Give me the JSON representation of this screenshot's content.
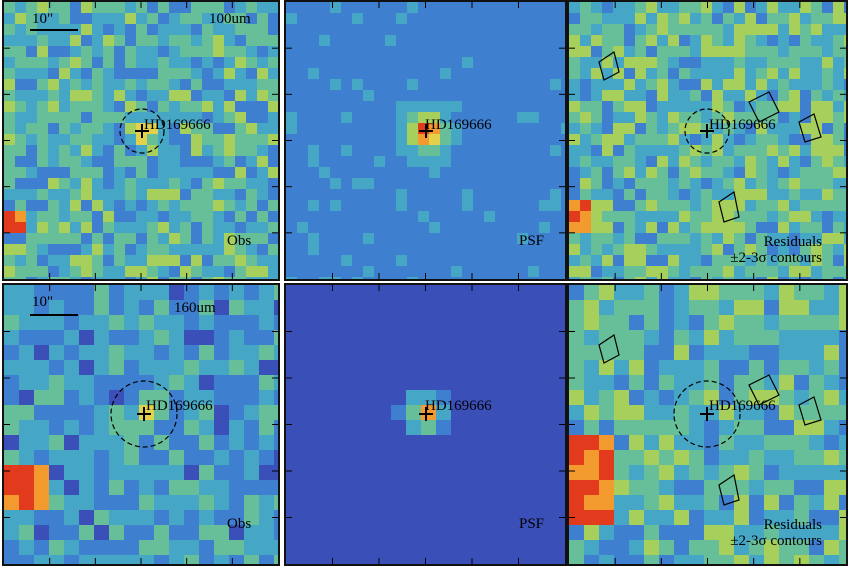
{
  "rows": [
    {
      "panels": [
        {
          "kind": "obs",
          "band_label": "100um",
          "corner_label": "Obs",
          "scalebar_label": "10\"",
          "target_label": "HD169666",
          "base_color": "#4f8fc9"
        },
        {
          "kind": "psf",
          "corner_label": "PSF",
          "target_label": "HD169666",
          "base_color": "#3f86d0"
        },
        {
          "kind": "res",
          "corner_label": "Residuals",
          "corner_label_2": "±2-3σ contours",
          "target_label": "HD169666",
          "base_color": "#5aa8b8"
        }
      ]
    },
    {
      "panels": [
        {
          "kind": "obs",
          "band_label": "160um",
          "corner_label": "Obs",
          "scalebar_label": "10\"",
          "target_label": "HD169666",
          "base_color": "#4a7cc6"
        },
        {
          "kind": "psf",
          "corner_label": "PSF",
          "target_label": "HD169666",
          "base_color": "#3f62b8"
        },
        {
          "kind": "res",
          "corner_label": "Residuals",
          "corner_label_2": "±2-3σ contours",
          "target_label": "HD169666",
          "base_color": "#52a0c0"
        }
      ]
    }
  ],
  "colormap": [
    "#3b1a9a",
    "#3b4fb8",
    "#3f7fcf",
    "#46a6c6",
    "#67bf9a",
    "#a6cf5c",
    "#e3d14a",
    "#f29a2e",
    "#e23a1c"
  ]
}
